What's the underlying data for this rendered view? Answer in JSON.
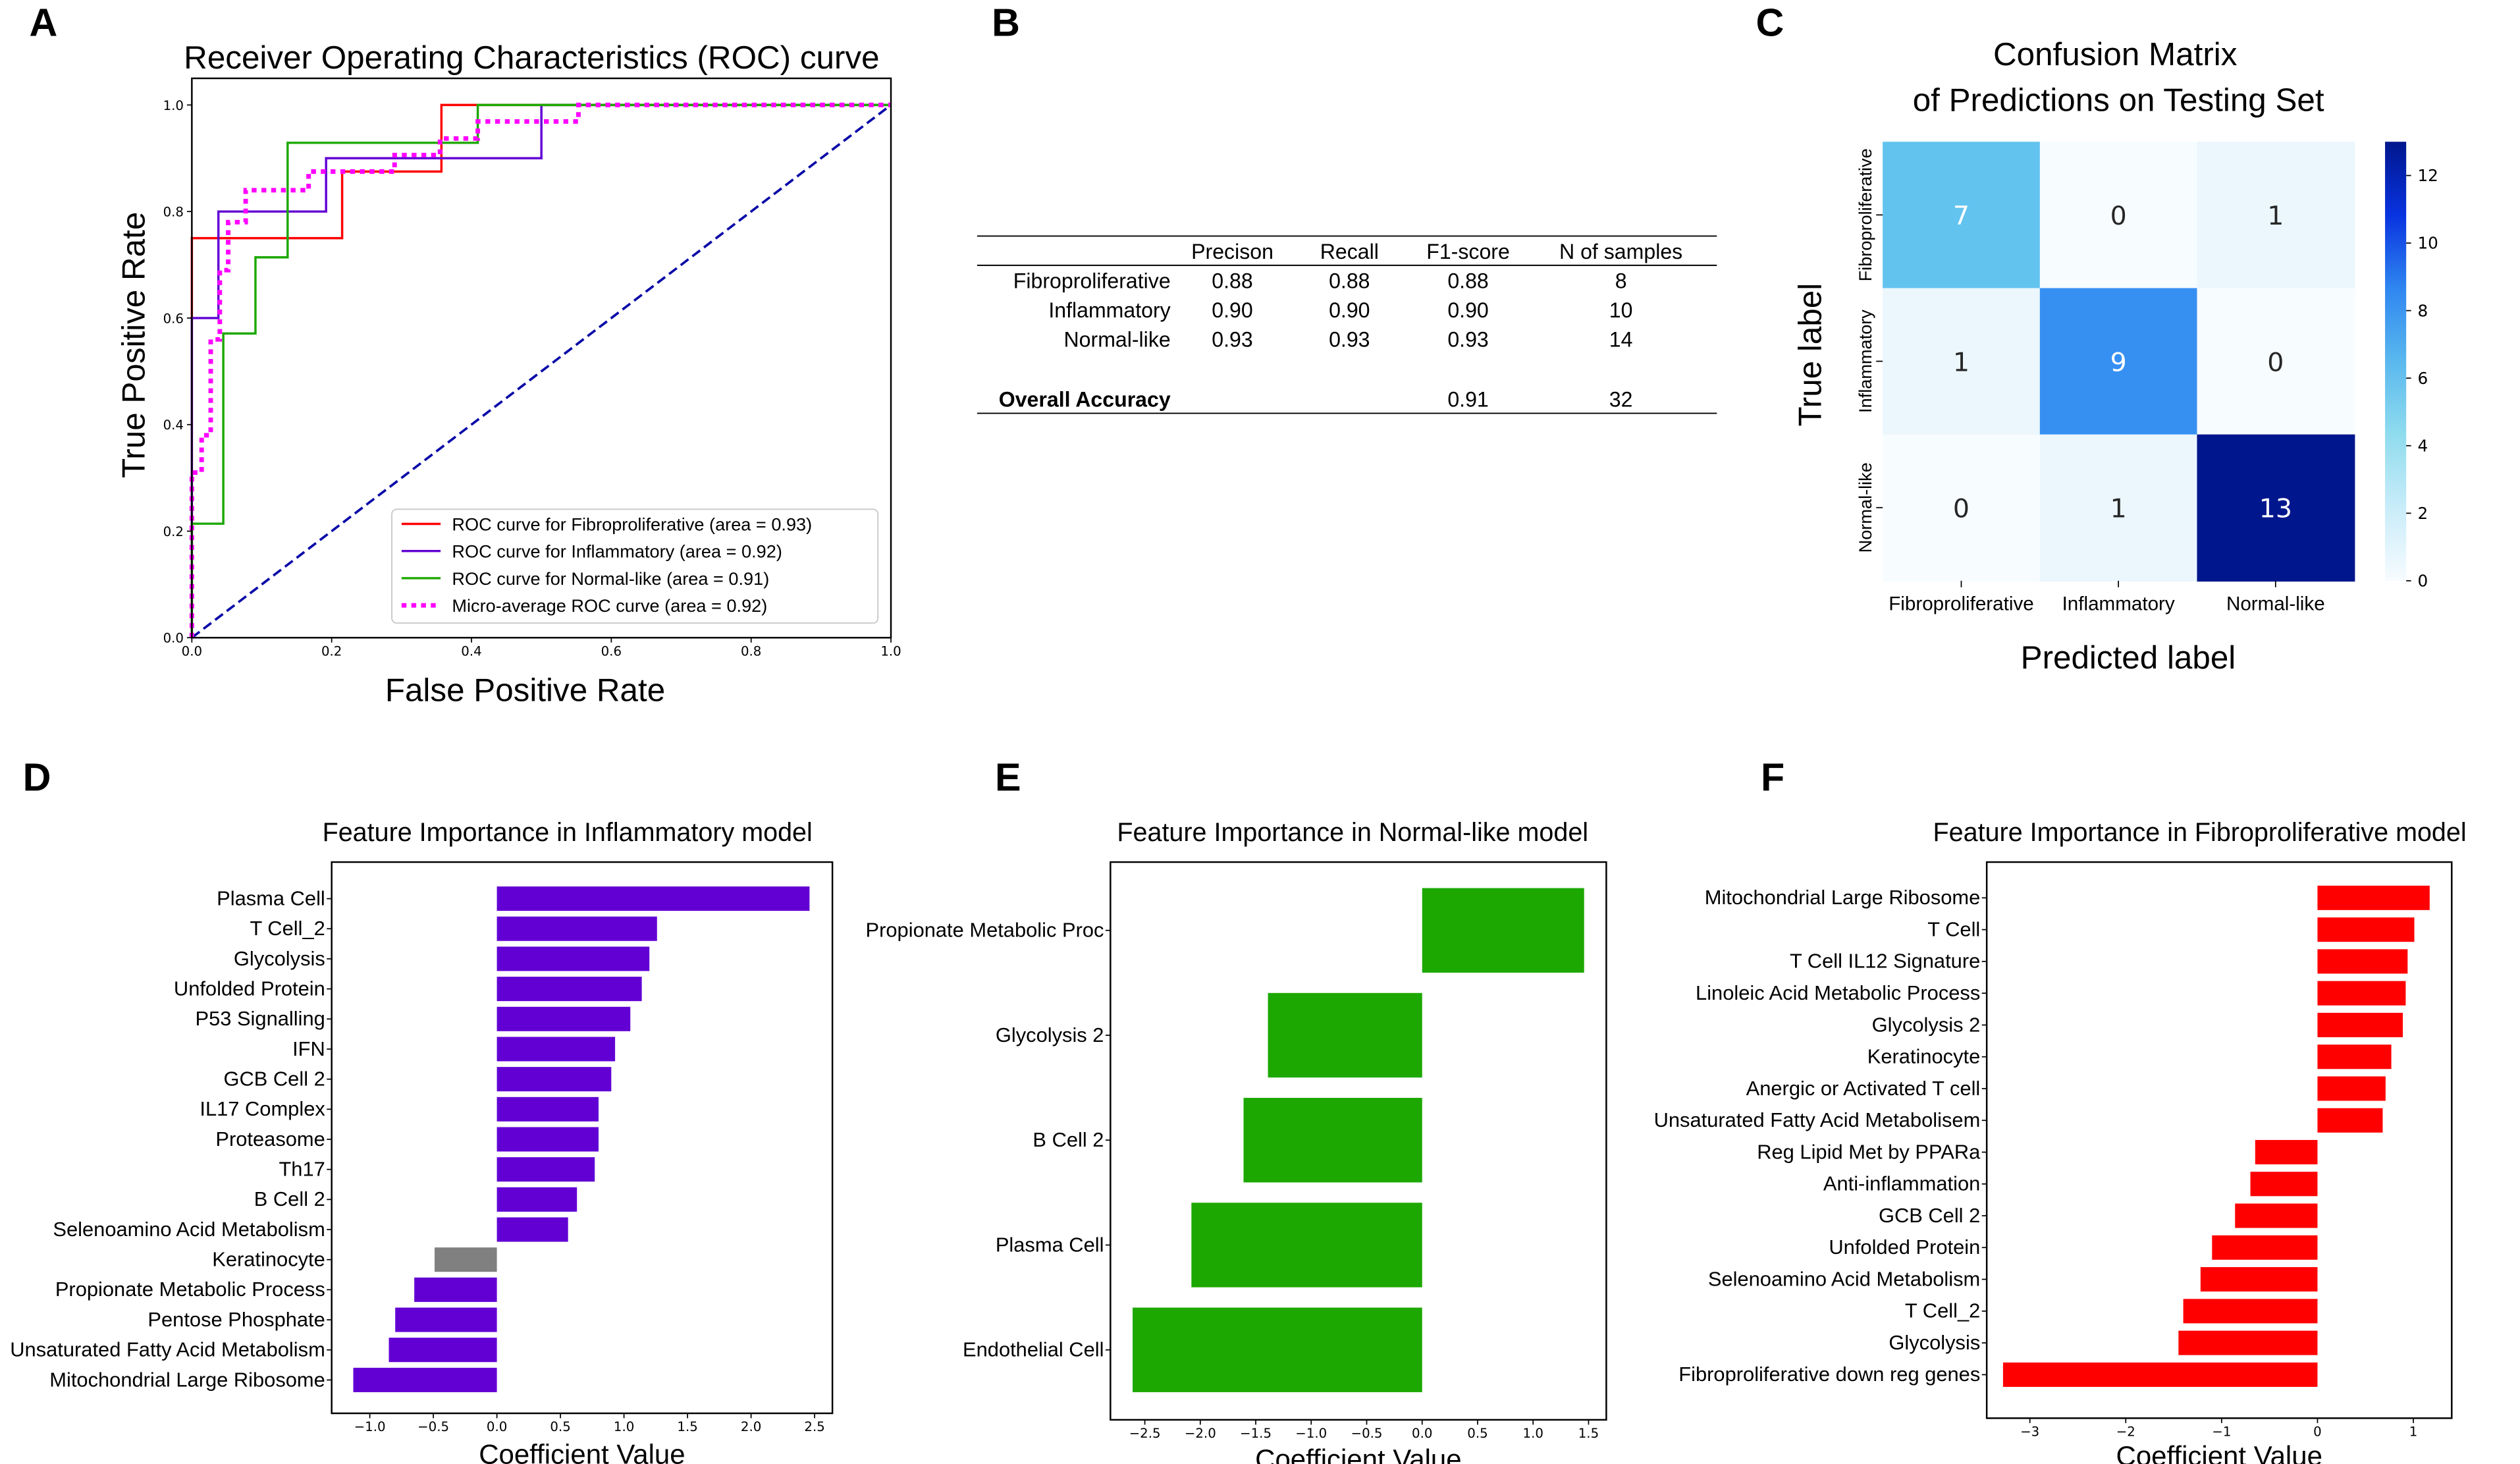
{
  "panels": {
    "a": "A",
    "b": "B",
    "c": "C",
    "d": "D",
    "e": "E",
    "f": "F"
  },
  "table": {
    "headers": [
      "Precison",
      "Recall",
      "F1-score",
      "N of samples"
    ],
    "rows": [
      {
        "label": "Fibroproliferative",
        "precision": "0.88",
        "recall": "0.88",
        "f1": "0.88",
        "n": "8"
      },
      {
        "label": "Inflammatory",
        "precision": "0.90",
        "recall": "0.90",
        "f1": "0.90",
        "n": "10"
      },
      {
        "label": "Normal-like",
        "precision": "0.93",
        "recall": "0.93",
        "f1": "0.93",
        "n": "14"
      }
    ],
    "overall": {
      "label": "Overall Accuracy",
      "f1": "0.91",
      "n": "32"
    }
  },
  "chart_data": [
    {
      "type": "line",
      "title": "Receiver Operating Characteristics (ROC) curve",
      "xlabel": "False Positive Rate",
      "ylabel": "True Positive Rate",
      "xlim": [
        0,
        1
      ],
      "ylim": [
        0,
        1.05
      ],
      "xticks": [
        "0.0",
        "0.2",
        "0.4",
        "0.6",
        "0.8",
        "1.0"
      ],
      "yticks": [
        "0.0",
        "0.2",
        "0.4",
        "0.6",
        "0.8",
        "1.0"
      ],
      "legend_position": "lower-right",
      "series": [
        {
          "name": "ROC curve for Fibroproliferative (area = 0.93)",
          "color": "#ff0000",
          "style": "solid",
          "points": [
            [
              0,
              0
            ],
            [
              0,
              0.75
            ],
            [
              0.215,
              0.75
            ],
            [
              0.215,
              0.875
            ],
            [
              0.357,
              0.875
            ],
            [
              0.357,
              1
            ],
            [
              1,
              1
            ]
          ]
        },
        {
          "name": "ROC curve for Inflammatory (area = 0.92)",
          "color": "#6200d4",
          "style": "solid",
          "points": [
            [
              0,
              0
            ],
            [
              0,
              0.6
            ],
            [
              0.038,
              0.6
            ],
            [
              0.038,
              0.8
            ],
            [
              0.192,
              0.8
            ],
            [
              0.192,
              0.9
            ],
            [
              0.5,
              0.9
            ],
            [
              0.5,
              1
            ],
            [
              1,
              1
            ]
          ]
        },
        {
          "name": "ROC curve for Normal-like (area = 0.91)",
          "color": "#1ca800",
          "style": "solid",
          "points": [
            [
              0,
              0
            ],
            [
              0,
              0.214
            ],
            [
              0.045,
              0.214
            ],
            [
              0.045,
              0.571
            ],
            [
              0.091,
              0.571
            ],
            [
              0.091,
              0.714
            ],
            [
              0.137,
              0.714
            ],
            [
              0.137,
              0.929
            ],
            [
              0.409,
              0.929
            ],
            [
              0.409,
              1
            ],
            [
              1,
              1
            ]
          ]
        },
        {
          "name": "Micro-average ROC curve (area = 0.92)",
          "color": "#ff00ff",
          "style": "dotted",
          "points": [
            [
              0,
              0
            ],
            [
              0,
              0.31
            ],
            [
              0.014,
              0.31
            ],
            [
              0.014,
              0.38
            ],
            [
              0.027,
              0.38
            ],
            [
              0.027,
              0.56
            ],
            [
              0.04,
              0.56
            ],
            [
              0.04,
              0.69
            ],
            [
              0.052,
              0.69
            ],
            [
              0.052,
              0.78
            ],
            [
              0.077,
              0.78
            ],
            [
              0.077,
              0.84
            ],
            [
              0.167,
              0.84
            ],
            [
              0.167,
              0.875
            ],
            [
              0.29,
              0.875
            ],
            [
              0.29,
              0.906
            ],
            [
              0.355,
              0.906
            ],
            [
              0.355,
              0.937
            ],
            [
              0.409,
              0.937
            ],
            [
              0.409,
              0.969
            ],
            [
              0.553,
              0.969
            ],
            [
              0.553,
              1
            ],
            [
              1,
              1
            ]
          ]
        }
      ],
      "diagonal": {
        "color": "#0a0aa8",
        "style": "dashed",
        "points": [
          [
            0,
            0
          ],
          [
            1,
            1
          ]
        ]
      }
    },
    {
      "type": "heatmap",
      "title": [
        "Confusion Matrix",
        "of Predictions on Testing Set"
      ],
      "xlabel": "Predicted label",
      "ylabel": "True label",
      "categories": [
        "Fibroproliferative",
        "Inflammatory",
        "Normal-like"
      ],
      "values": [
        [
          7,
          0,
          1
        ],
        [
          1,
          9,
          0
        ],
        [
          0,
          1,
          13
        ]
      ],
      "cell_colors": [
        [
          "#63c3ef",
          "#f7fcff",
          "#ebf7fd"
        ],
        [
          "#ebf7fd",
          "#3690f2",
          "#f7fcff"
        ],
        [
          "#f7fcff",
          "#ebf7fd",
          "#00168d"
        ]
      ],
      "text_colors": [
        [
          "#ffffff",
          "#262626",
          "#262626"
        ],
        [
          "#262626",
          "#ffffff",
          "#262626"
        ],
        [
          "#262626",
          "#262626",
          "#ffffff"
        ]
      ],
      "colorbar": {
        "min": 0,
        "max": 13,
        "ticks": [
          "0",
          "2",
          "4",
          "6",
          "8",
          "10",
          "12"
        ],
        "stops": [
          "#f7fcff",
          "#c9ecf9",
          "#8fdcee",
          "#5ab8ee",
          "#2f86f0",
          "#0833e0",
          "#00168d"
        ]
      }
    },
    {
      "type": "bar",
      "orientation": "horizontal",
      "title": "Feature Importance in Inflammatory model",
      "xlabel": "Coefficient Value",
      "xlim": [
        -1.3,
        2.64
      ],
      "xticks": [
        -1.0,
        -0.5,
        0.0,
        0.5,
        1.0,
        1.5,
        2.0,
        2.5
      ],
      "color": "#6200d4",
      "categories": [
        "Plasma Cell",
        "T Cell_2",
        "Glycolysis",
        "Unfolded Protein",
        "P53 Signalling",
        "IFN",
        "GCB Cell 2",
        "IL17 Complex",
        "Proteasome",
        "Th17",
        "B Cell 2",
        "Selenoamino Acid Metabolism",
        "Keratinocyte",
        "Propionate Metabolic Process",
        "Pentose Phosphate",
        "Unsaturated Fatty Acid Metabolism",
        "Mitochondrial Large Ribosome"
      ],
      "values": [
        2.46,
        1.26,
        1.2,
        1.14,
        1.05,
        0.93,
        0.9,
        0.8,
        0.8,
        0.77,
        0.63,
        0.56,
        -0.49,
        -0.65,
        -0.8,
        -0.85,
        -1.13
      ],
      "bar_colors": {
        "12": "#808080"
      }
    },
    {
      "type": "bar",
      "orientation": "horizontal",
      "title": "Feature Importance in Normal-like model",
      "xlabel": "Coefficient Value",
      "xlim": [
        -2.81,
        1.66
      ],
      "xticks": [
        -2.5,
        -2.0,
        -1.5,
        -1.0,
        -0.5,
        0.0,
        0.5,
        1.0,
        1.5
      ],
      "color": "#1ca800",
      "categories": [
        "Propionate Metabolic Proc",
        "Glycolysis 2",
        "B Cell 2",
        "Plasma Cell",
        "Endothelial Cell"
      ],
      "values": [
        1.46,
        -1.39,
        -1.61,
        -2.08,
        -2.61
      ]
    },
    {
      "type": "bar",
      "orientation": "horizontal",
      "title": "Feature Importance in Fibroproliferative model",
      "xlabel": "Coefficient Value",
      "xlim": [
        -3.45,
        1.4
      ],
      "xticks": [
        -3,
        -2,
        -1,
        0,
        1
      ],
      "color": "#ff0000",
      "categories": [
        "Mitochondrial Large Ribosome",
        "T Cell",
        "T Cell IL12 Signature",
        "Linoleic Acid Metabolic Process",
        "Glycolysis 2",
        "Keratinocyte",
        "Anergic or Activated T cell",
        "Unsaturated Fatty Acid Metabolisem",
        "Reg Lipid Met by PPARa",
        "Anti-inflammation",
        "GCB Cell 2",
        "Unfolded Protein",
        "Selenoamino Acid Metabolism",
        "T Cell_2",
        "Glycolysis",
        "Fibroproliferative down reg genes"
      ],
      "values": [
        1.17,
        1.01,
        0.94,
        0.92,
        0.89,
        0.77,
        0.71,
        0.68,
        -0.65,
        -0.7,
        -0.86,
        -1.1,
        -1.22,
        -1.4,
        -1.45,
        -3.28
      ]
    }
  ]
}
